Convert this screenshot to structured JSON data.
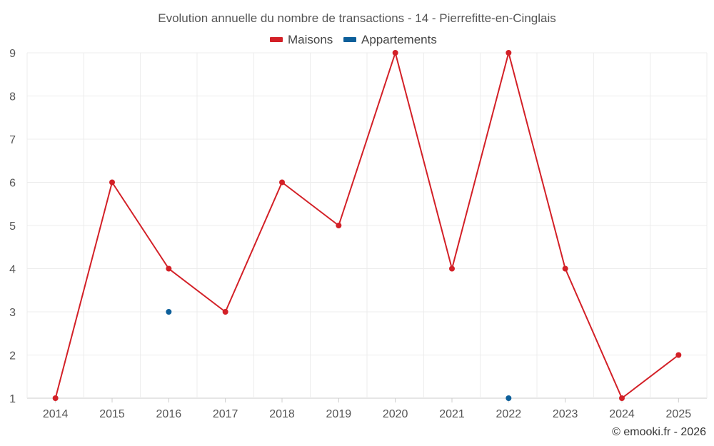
{
  "chart_data": {
    "type": "line",
    "title": "Evolution annuelle du nombre de transactions - 14 - Pierrefitte-en-Cinglais",
    "categories": [
      "2014",
      "2015",
      "2016",
      "2017",
      "2018",
      "2019",
      "2020",
      "2021",
      "2022",
      "2023",
      "2024",
      "2025"
    ],
    "series": [
      {
        "name": "Maisons",
        "color": "#d32027",
        "values": [
          1,
          6,
          4,
          3,
          6,
          5,
          9,
          4,
          9,
          4,
          1,
          2
        ],
        "line": true
      },
      {
        "name": "Appartements",
        "color": "#0d5f9a",
        "values": [
          null,
          null,
          3,
          null,
          null,
          null,
          null,
          null,
          1,
          null,
          null,
          null
        ],
        "line": false
      }
    ],
    "ylim": [
      1,
      9
    ],
    "yticks": [
      1,
      2,
      3,
      4,
      5,
      6,
      7,
      8,
      9
    ],
    "xlabel": "",
    "ylabel": "",
    "grid": true,
    "legend_position": "top-center"
  },
  "credit": "© emooki.fr - 2026"
}
